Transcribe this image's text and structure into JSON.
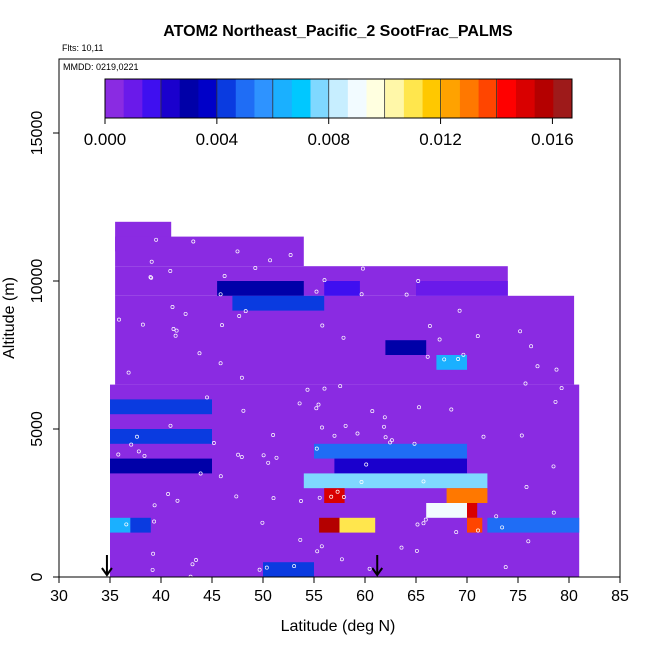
{
  "chart_data": {
    "type": "heatmap",
    "title": "ATOM2 Northeast_Pacific_2 SootFrac_PALMS",
    "annotations": [
      "Flts: 10,11",
      "MMDD: 0219,0221"
    ],
    "xlabel": "Latitude (deg N)",
    "ylabel": "Altitude (m)",
    "xlim": [
      30,
      85
    ],
    "ylim": [
      0,
      17500
    ],
    "x_ticks": [
      "30",
      "35",
      "40",
      "45",
      "50",
      "55",
      "60",
      "65",
      "70",
      "75",
      "80",
      "85"
    ],
    "y_ticks": [
      "0",
      "5000",
      "10000",
      "15000"
    ],
    "colorbar": {
      "ticks": [
        "0.000",
        "0.004",
        "0.008",
        "0.012",
        "0.016"
      ],
      "range": [
        0,
        0.0167
      ],
      "colors": [
        "#8a2be2",
        "#6a1aea",
        "#3f0ff0",
        "#1a00cd",
        "#0000a8",
        "#0000c8",
        "#0a3be0",
        "#1f6df5",
        "#2e93ff",
        "#1ab0ff",
        "#00c8ff",
        "#7fd8ff",
        "#c7eeff",
        "#f2fbff",
        "#ffffe0",
        "#fff7a8",
        "#ffe64d",
        "#ffc800",
        "#ffa200",
        "#ff7800",
        "#ff4500",
        "#ff0000",
        "#d90000",
        "#b40000",
        "#9e1a1a"
      ]
    },
    "background_value": 0.0,
    "coverage": [
      [
        35.5,
        41,
        11000,
        12000
      ],
      [
        35.5,
        54,
        10500,
        11500
      ],
      [
        35.5,
        74,
        9500,
        10500
      ],
      [
        35.5,
        80.5,
        6500,
        9500
      ],
      [
        35,
        81,
        0,
        6500
      ]
    ],
    "features": [
      {
        "lat_range": [
          45.5,
          54
        ],
        "alt_range": [
          9500,
          10000
        ],
        "value": 0.003
      },
      {
        "lat_range": [
          47,
          56
        ],
        "alt_range": [
          9000,
          9500
        ],
        "value": 0.004
      },
      {
        "lat_range": [
          56,
          59.5
        ],
        "alt_range": [
          9500,
          10000
        ],
        "value": 0.0015
      },
      {
        "lat_range": [
          62,
          66
        ],
        "alt_range": [
          7500,
          8000
        ],
        "value": 0.003
      },
      {
        "lat_range": [
          67,
          70
        ],
        "alt_range": [
          7000,
          7500
        ],
        "value": 0.006
      },
      {
        "lat_range": [
          65,
          74
        ],
        "alt_range": [
          9500,
          10000
        ],
        "value": 0.001
      },
      {
        "lat_range": [
          35,
          45
        ],
        "alt_range": [
          5500,
          6000
        ],
        "value": 0.004
      },
      {
        "lat_range": [
          35,
          45
        ],
        "alt_range": [
          4500,
          5000
        ],
        "value": 0.004
      },
      {
        "lat_range": [
          35,
          45
        ],
        "alt_range": [
          3500,
          4000
        ],
        "value": 0.003
      },
      {
        "lat_range": [
          55,
          70
        ],
        "alt_range": [
          4000,
          4500
        ],
        "value": 0.005
      },
      {
        "lat_range": [
          57,
          70
        ],
        "alt_range": [
          3500,
          4000
        ],
        "value": 0.002
      },
      {
        "lat_range": [
          54,
          72
        ],
        "alt_range": [
          3000,
          3500
        ],
        "value": 0.008
      },
      {
        "lat_range": [
          56,
          58
        ],
        "alt_range": [
          2500,
          3000
        ],
        "value": 0.015
      },
      {
        "lat_range": [
          68,
          72
        ],
        "alt_range": [
          2500,
          3000
        ],
        "value": 0.013
      },
      {
        "lat_range": [
          69.5,
          71
        ],
        "alt_range": [
          2000,
          2500
        ],
        "value": 0.015
      },
      {
        "lat_range": [
          66,
          70
        ],
        "alt_range": [
          2000,
          2500
        ],
        "value": 0.009
      },
      {
        "lat_range": [
          55.5,
          57.5
        ],
        "alt_range": [
          1500,
          2000
        ],
        "value": 0.016
      },
      {
        "lat_range": [
          57.5,
          61
        ],
        "alt_range": [
          1500,
          2000
        ],
        "value": 0.011
      },
      {
        "lat_range": [
          70,
          71.5
        ],
        "alt_range": [
          1500,
          2000
        ],
        "value": 0.014
      },
      {
        "lat_range": [
          35,
          37
        ],
        "alt_range": [
          1500,
          2000
        ],
        "value": 0.006
      },
      {
        "lat_range": [
          37,
          39
        ],
        "alt_range": [
          1500,
          2000
        ],
        "value": 0.004
      },
      {
        "lat_range": [
          72,
          81
        ],
        "alt_range": [
          1500,
          2000
        ],
        "value": 0.005
      },
      {
        "lat_range": [
          50,
          55
        ],
        "alt_range": [
          0,
          500
        ],
        "value": 0.004
      }
    ],
    "markers": [
      {
        "lat": 34.7,
        "alt": 0
      },
      {
        "lat": 61.2,
        "alt": 0
      }
    ]
  }
}
